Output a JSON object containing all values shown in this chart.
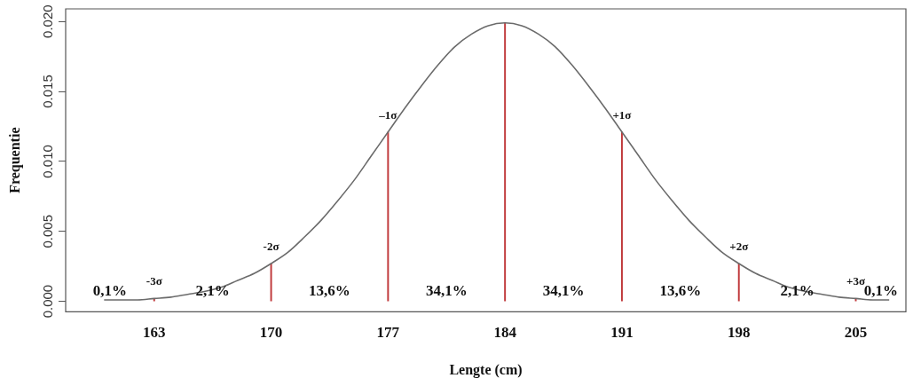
{
  "chart_data": {
    "type": "line",
    "xlabel": "Lengte (cm)",
    "ylabel": "Frequentie",
    "xlim": [
      157.7,
      208
    ],
    "xticks": [
      163,
      170,
      177,
      184,
      191,
      198,
      205
    ],
    "ylim": [
      -0.00075,
      0.0209
    ],
    "yticks": [
      {
        "value": 0,
        "label": "0.000"
      },
      {
        "value": 0.005,
        "label": "0.005"
      },
      {
        "value": 0.01,
        "label": "0.010"
      },
      {
        "value": 0.015,
        "label": "0.015"
      },
      {
        "value": 0.02,
        "label": "0.020"
      }
    ],
    "grid": false,
    "legend": false,
    "marker": "none",
    "line_style": "solid",
    "series": [
      {
        "color": "#6b6b6b",
        "x": [
          160,
          161,
          162,
          163,
          164,
          165,
          166,
          167,
          168,
          169,
          170,
          171,
          172,
          173,
          174,
          175,
          176,
          177,
          178,
          179,
          180,
          181,
          182,
          183,
          184,
          185,
          186,
          187,
          188,
          189,
          190,
          191,
          192,
          193,
          194,
          195,
          196,
          197,
          198,
          199,
          200,
          201,
          202,
          203,
          204,
          205,
          206,
          207
        ],
        "values": [
          0.0001,
          0.0001,
          0.0001,
          0.0002,
          0.0003,
          0.0005,
          0.0007,
          0.001,
          0.0015,
          0.002,
          0.0027,
          0.0035,
          0.0046,
          0.0058,
          0.0072,
          0.0087,
          0.0104,
          0.0121,
          0.0138,
          0.0154,
          0.0169,
          0.0182,
          0.0191,
          0.0197,
          0.0199,
          0.0197,
          0.0191,
          0.0182,
          0.0169,
          0.0154,
          0.0138,
          0.0121,
          0.0104,
          0.0087,
          0.0072,
          0.0058,
          0.0046,
          0.0035,
          0.0027,
          0.002,
          0.0015,
          0.001,
          0.0007,
          0.0005,
          0.0003,
          0.0002,
          0.0001,
          0.0001
        ]
      },
      {
        "type": "bar",
        "color": "#c0393b",
        "x": [
          163,
          170,
          177,
          184,
          191,
          198,
          205
        ],
        "values": [
          0.0002,
          0.0027,
          0.0121,
          0.0199,
          0.0121,
          0.0027,
          0.0002
        ]
      }
    ],
    "annotations": [
      {
        "text": "-3σ",
        "x": 163,
        "y": 0.0002
      },
      {
        "text": "-2σ",
        "x": 170,
        "y": 0.0027
      },
      {
        "text": "–1σ",
        "x": 177,
        "y": 0.0121
      },
      {
        "text": "+1σ",
        "x": 191,
        "y": 0.0121
      },
      {
        "text": "+2σ",
        "x": 198,
        "y": 0.0027
      },
      {
        "text": "+3σ",
        "x": 205,
        "y": 0.0002
      },
      "0,1%",
      "2,1%",
      "13,6%",
      "34,1%",
      "34,1%",
      "13,6%",
      "2,1%",
      "0,1%"
    ]
  }
}
